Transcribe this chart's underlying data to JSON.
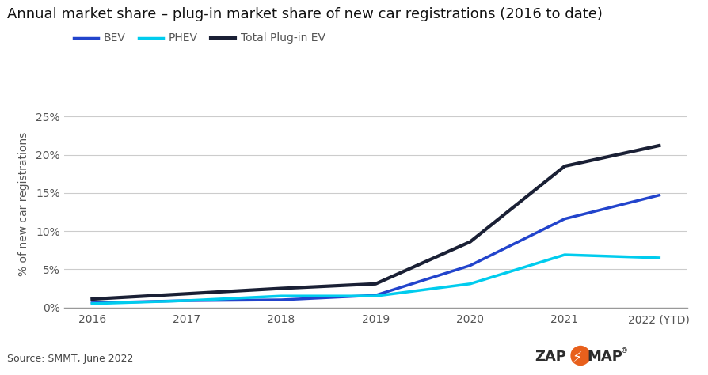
{
  "title": "Annual market share – plug-in market share of new car registrations (2016 to date)",
  "ylabel": "% of new car registrations",
  "source_text": "Source: SMMT, June 2022",
  "x_labels": [
    "2016",
    "2017",
    "2018",
    "2019",
    "2020",
    "2021",
    "2022 (YTD)"
  ],
  "x_values": [
    0,
    1,
    2,
    3,
    4,
    5,
    6
  ],
  "BEV": [
    0.6,
    0.9,
    1.0,
    1.6,
    5.5,
    11.6,
    14.7
  ],
  "PHEV": [
    0.5,
    0.9,
    1.5,
    1.5,
    3.1,
    6.9,
    6.5
  ],
  "Total": [
    1.1,
    1.8,
    2.5,
    3.1,
    8.6,
    18.5,
    21.2
  ],
  "BEV_color": "#2244cc",
  "PHEV_color": "#00ccee",
  "Total_color": "#1a2035",
  "background_color": "#ffffff",
  "ylim": [
    0,
    27
  ],
  "yticks": [
    0,
    5,
    10,
    15,
    20,
    25
  ],
  "ytick_labels": [
    "0%",
    "5%",
    "10%",
    "15%",
    "20%",
    "25%"
  ],
  "title_fontsize": 13,
  "axis_fontsize": 10,
  "legend_fontsize": 10,
  "line_width": 2.5,
  "grid_color": "#cccccc",
  "tick_color": "#555555",
  "zapmap_dark": "#2d2d2d",
  "zapmap_orange": "#e8601c"
}
